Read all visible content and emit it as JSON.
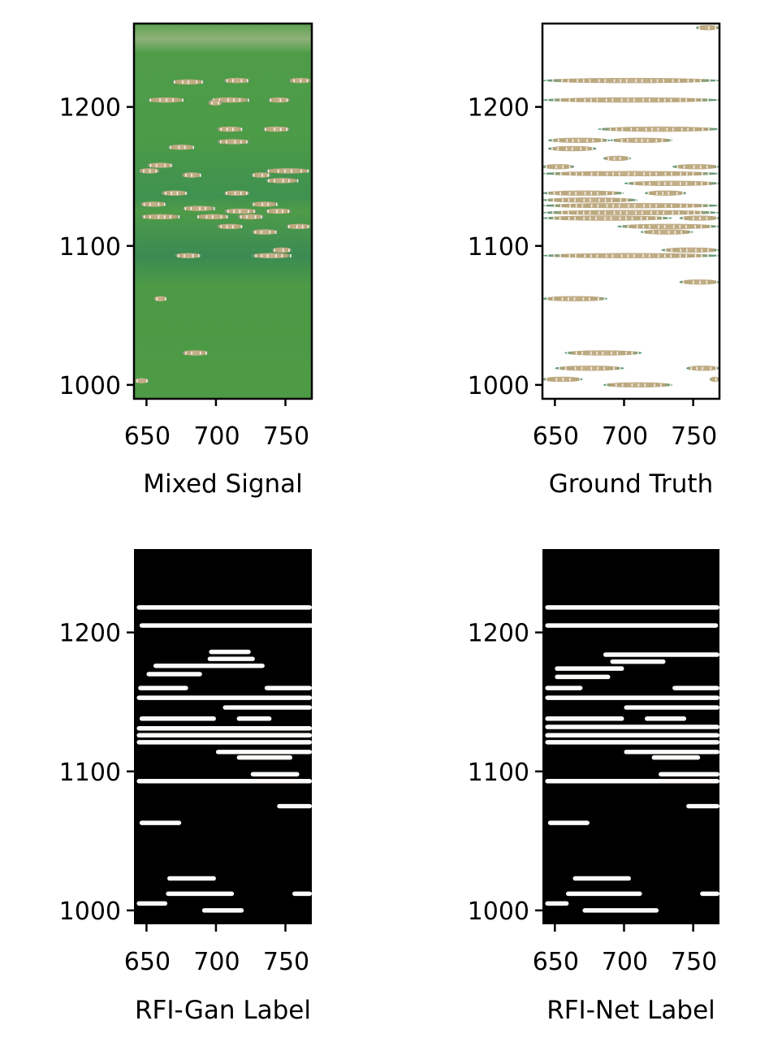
{
  "chart_data": [
    {
      "type": "heatmap",
      "style": "colormap",
      "xlabel": "Mixed Signal",
      "ylabel": "",
      "xlim": [
        641,
        769
      ],
      "ylim": [
        990,
        1260
      ],
      "xticks": [
        {
          "value": 650,
          "label": "650"
        },
        {
          "value": 700,
          "label": "700"
        },
        {
          "value": 750,
          "label": "750"
        }
      ],
      "yticks": [
        {
          "value": 1000,
          "label": "1000"
        },
        {
          "value": 1100,
          "label": "1100"
        },
        {
          "value": 1200,
          "label": "1200"
        }
      ],
      "colors": {
        "background": "#4c9a45",
        "band_dark": "#3b8a52",
        "band_light": "#6aa55a",
        "rfi": "#b7a47a",
        "rfi_peak": "#f4efe6"
      },
      "rfi_segments": [
        {
          "y": 1218,
          "x0": 668,
          "x1": 692
        },
        {
          "y": 1219,
          "x0": 705,
          "x1": 725
        },
        {
          "y": 1219,
          "x0": 752,
          "x1": 769
        },
        {
          "y": 1205,
          "x0": 650,
          "x1": 678
        },
        {
          "y": 1205,
          "x0": 695,
          "x1": 725
        },
        {
          "y": 1205,
          "x0": 737,
          "x1": 754
        },
        {
          "y": 1203,
          "x0": 694,
          "x1": 705
        },
        {
          "y": 1184,
          "x0": 700,
          "x1": 720
        },
        {
          "y": 1184,
          "x0": 733,
          "x1": 754
        },
        {
          "y": 1175,
          "x0": 700,
          "x1": 725
        },
        {
          "y": 1171,
          "x0": 665,
          "x1": 685
        },
        {
          "y": 1158,
          "x0": 650,
          "x1": 670
        },
        {
          "y": 1154,
          "x0": 644,
          "x1": 660
        },
        {
          "y": 1154,
          "x0": 735,
          "x1": 769
        },
        {
          "y": 1151,
          "x0": 675,
          "x1": 690
        },
        {
          "y": 1151,
          "x0": 725,
          "x1": 740
        },
        {
          "y": 1147,
          "x0": 735,
          "x1": 760
        },
        {
          "y": 1138,
          "x0": 660,
          "x1": 680
        },
        {
          "y": 1138,
          "x0": 705,
          "x1": 725
        },
        {
          "y": 1130,
          "x0": 645,
          "x1": 665
        },
        {
          "y": 1130,
          "x0": 725,
          "x1": 745
        },
        {
          "y": 1127,
          "x0": 675,
          "x1": 700
        },
        {
          "y": 1125,
          "x0": 705,
          "x1": 730
        },
        {
          "y": 1125,
          "x0": 735,
          "x1": 755
        },
        {
          "y": 1121,
          "x0": 645,
          "x1": 675
        },
        {
          "y": 1121,
          "x0": 685,
          "x1": 710
        },
        {
          "y": 1121,
          "x0": 715,
          "x1": 735
        },
        {
          "y": 1114,
          "x0": 700,
          "x1": 720
        },
        {
          "y": 1114,
          "x0": 750,
          "x1": 769
        },
        {
          "y": 1110,
          "x0": 725,
          "x1": 745
        },
        {
          "y": 1097,
          "x0": 740,
          "x1": 755
        },
        {
          "y": 1093,
          "x0": 670,
          "x1": 690
        },
        {
          "y": 1093,
          "x0": 725,
          "x1": 755
        },
        {
          "y": 1062,
          "x0": 655,
          "x1": 665
        },
        {
          "y": 1023,
          "x0": 675,
          "x1": 695
        },
        {
          "y": 1003,
          "x0": 641,
          "x1": 652
        }
      ]
    },
    {
      "type": "heatmap",
      "style": "colormap",
      "xlabel": "Ground Truth",
      "ylabel": "",
      "xlim": [
        641,
        769
      ],
      "ylim": [
        990,
        1260
      ],
      "xticks": [
        {
          "value": 650,
          "label": "650"
        },
        {
          "value": 700,
          "label": "700"
        },
        {
          "value": 750,
          "label": "750"
        }
      ],
      "yticks": [
        {
          "value": 1000,
          "label": "1000"
        },
        {
          "value": 1100,
          "label": "1100"
        },
        {
          "value": 1200,
          "label": "1200"
        }
      ],
      "colors": {
        "background": "#ffffff",
        "edge": "#3d8c60",
        "rfi": "#b7a47a",
        "rfi_peak": "#f4efe6"
      },
      "rfi_segments": [
        {
          "y": 1257,
          "x0": 752,
          "x1": 769
        },
        {
          "y": 1219,
          "x0": 641,
          "x1": 769
        },
        {
          "y": 1205,
          "x0": 641,
          "x1": 769
        },
        {
          "y": 1184,
          "x0": 681,
          "x1": 769
        },
        {
          "y": 1176,
          "x0": 645,
          "x1": 690
        },
        {
          "y": 1176,
          "x0": 690,
          "x1": 735
        },
        {
          "y": 1170,
          "x0": 645,
          "x1": 680
        },
        {
          "y": 1163,
          "x0": 685,
          "x1": 705
        },
        {
          "y": 1157,
          "x0": 641,
          "x1": 664
        },
        {
          "y": 1157,
          "x0": 735,
          "x1": 769
        },
        {
          "y": 1152,
          "x0": 641,
          "x1": 769
        },
        {
          "y": 1145,
          "x0": 700,
          "x1": 769
        },
        {
          "y": 1138,
          "x0": 641,
          "x1": 700
        },
        {
          "y": 1138,
          "x0": 715,
          "x1": 745
        },
        {
          "y": 1133,
          "x0": 641,
          "x1": 710
        },
        {
          "y": 1129,
          "x0": 641,
          "x1": 769
        },
        {
          "y": 1124,
          "x0": 641,
          "x1": 769
        },
        {
          "y": 1120,
          "x0": 641,
          "x1": 735
        },
        {
          "y": 1120,
          "x0": 740,
          "x1": 769
        },
        {
          "y": 1114,
          "x0": 695,
          "x1": 769
        },
        {
          "y": 1110,
          "x0": 712,
          "x1": 750
        },
        {
          "y": 1097,
          "x0": 727,
          "x1": 769
        },
        {
          "y": 1093,
          "x0": 641,
          "x1": 769
        },
        {
          "y": 1074,
          "x0": 740,
          "x1": 769
        },
        {
          "y": 1062,
          "x0": 641,
          "x1": 688
        },
        {
          "y": 1023,
          "x0": 657,
          "x1": 713
        },
        {
          "y": 1012,
          "x0": 650,
          "x1": 700
        },
        {
          "y": 1012,
          "x0": 745,
          "x1": 769
        },
        {
          "y": 1004,
          "x0": 641,
          "x1": 670
        },
        {
          "y": 1004,
          "x0": 762,
          "x1": 769
        },
        {
          "y": 1000,
          "x0": 685,
          "x1": 735
        }
      ]
    },
    {
      "type": "heatmap",
      "style": "binary",
      "xlabel": "RFI-Gan Label",
      "ylabel": "",
      "xlim": [
        641,
        769
      ],
      "ylim": [
        990,
        1260
      ],
      "xticks": [
        {
          "value": 650,
          "label": "650"
        },
        {
          "value": 700,
          "label": "700"
        },
        {
          "value": 750,
          "label": "750"
        }
      ],
      "yticks": [
        {
          "value": 1000,
          "label": "1000"
        },
        {
          "value": 1100,
          "label": "1100"
        },
        {
          "value": 1200,
          "label": "1200"
        }
      ],
      "colors": {
        "background": "#000000",
        "rfi": "#fbfaf8"
      },
      "rfi_segments": [
        {
          "y": 1218,
          "x0": 643,
          "x1": 769
        },
        {
          "y": 1205,
          "x0": 645,
          "x1": 770
        },
        {
          "y": 1186,
          "x0": 695,
          "x1": 725
        },
        {
          "y": 1181,
          "x0": 694,
          "x1": 728
        },
        {
          "y": 1176,
          "x0": 655,
          "x1": 735
        },
        {
          "y": 1170,
          "x0": 650,
          "x1": 690
        },
        {
          "y": 1160,
          "x0": 644,
          "x1": 680
        },
        {
          "y": 1160,
          "x0": 735,
          "x1": 769
        },
        {
          "y": 1153,
          "x0": 643,
          "x1": 769
        },
        {
          "y": 1146,
          "x0": 705,
          "x1": 769
        },
        {
          "y": 1138,
          "x0": 645,
          "x1": 700
        },
        {
          "y": 1138,
          "x0": 715,
          "x1": 740
        },
        {
          "y": 1131,
          "x0": 643,
          "x1": 769
        },
        {
          "y": 1126,
          "x0": 643,
          "x1": 769
        },
        {
          "y": 1121,
          "x0": 643,
          "x1": 769
        },
        {
          "y": 1114,
          "x0": 700,
          "x1": 769
        },
        {
          "y": 1110,
          "x0": 715,
          "x1": 755
        },
        {
          "y": 1098,
          "x0": 725,
          "x1": 760
        },
        {
          "y": 1093,
          "x0": 643,
          "x1": 769
        },
        {
          "y": 1075,
          "x0": 744,
          "x1": 769
        },
        {
          "y": 1063,
          "x0": 645,
          "x1": 675
        },
        {
          "y": 1023,
          "x0": 665,
          "x1": 700
        },
        {
          "y": 1012,
          "x0": 664,
          "x1": 713
        },
        {
          "y": 1012,
          "x0": 755,
          "x1": 769
        },
        {
          "y": 1005,
          "x0": 643,
          "x1": 665
        },
        {
          "y": 1000,
          "x0": 690,
          "x1": 720
        }
      ]
    },
    {
      "type": "heatmap",
      "style": "binary",
      "xlabel": "RFI-Net Label",
      "ylabel": "",
      "xlim": [
        641,
        769
      ],
      "ylim": [
        990,
        1260
      ],
      "xticks": [
        {
          "value": 650,
          "label": "650"
        },
        {
          "value": 700,
          "label": "700"
        },
        {
          "value": 750,
          "label": "750"
        }
      ],
      "yticks": [
        {
          "value": 1000,
          "label": "1000"
        },
        {
          "value": 1100,
          "label": "1100"
        },
        {
          "value": 1200,
          "label": "1200"
        }
      ],
      "colors": {
        "background": "#000000",
        "rfi": "#fbfaf8"
      },
      "rfi_segments": [
        {
          "y": 1218,
          "x0": 643,
          "x1": 769
        },
        {
          "y": 1205,
          "x0": 643,
          "x1": 768
        },
        {
          "y": 1184,
          "x0": 685,
          "x1": 769
        },
        {
          "y": 1179,
          "x0": 690,
          "x1": 730
        },
        {
          "y": 1174,
          "x0": 650,
          "x1": 700
        },
        {
          "y": 1168,
          "x0": 650,
          "x1": 690
        },
        {
          "y": 1160,
          "x0": 643,
          "x1": 670
        },
        {
          "y": 1160,
          "x0": 735,
          "x1": 769
        },
        {
          "y": 1153,
          "x0": 643,
          "x1": 769
        },
        {
          "y": 1146,
          "x0": 700,
          "x1": 769
        },
        {
          "y": 1138,
          "x0": 643,
          "x1": 700
        },
        {
          "y": 1138,
          "x0": 715,
          "x1": 745
        },
        {
          "y": 1132,
          "x0": 643,
          "x1": 769
        },
        {
          "y": 1126,
          "x0": 643,
          "x1": 769
        },
        {
          "y": 1121,
          "x0": 643,
          "x1": 769
        },
        {
          "y": 1114,
          "x0": 700,
          "x1": 769
        },
        {
          "y": 1110,
          "x0": 720,
          "x1": 755
        },
        {
          "y": 1098,
          "x0": 725,
          "x1": 769
        },
        {
          "y": 1093,
          "x0": 643,
          "x1": 769
        },
        {
          "y": 1075,
          "x0": 745,
          "x1": 769
        },
        {
          "y": 1063,
          "x0": 645,
          "x1": 675
        },
        {
          "y": 1023,
          "x0": 663,
          "x1": 705
        },
        {
          "y": 1012,
          "x0": 658,
          "x1": 713
        },
        {
          "y": 1012,
          "x0": 755,
          "x1": 769
        },
        {
          "y": 1005,
          "x0": 643,
          "x1": 660
        },
        {
          "y": 1000,
          "x0": 670,
          "x1": 725
        }
      ]
    }
  ]
}
